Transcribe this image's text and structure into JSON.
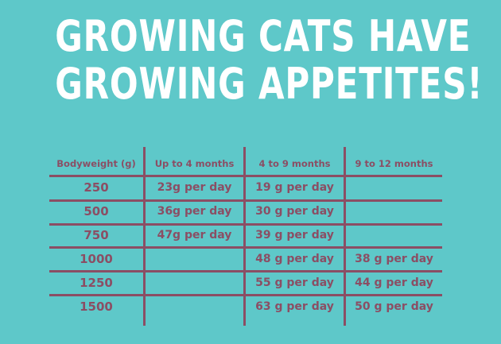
{
  "title": {
    "line1": "GROWING CATS HAVE",
    "line2": "GROWING APPETITES!"
  },
  "table": {
    "headers": [
      "Bodyweight (g)",
      "Up to 4 months",
      "4 to 9 months",
      "9 to 12 months"
    ],
    "rows": [
      {
        "bodyweight": "250",
        "up_to_4": "23g per day",
        "m4_to_9": "19 g per day",
        "m9_to_12": ""
      },
      {
        "bodyweight": "500",
        "up_to_4": "36g per day",
        "m4_to_9": "30 g per day",
        "m9_to_12": ""
      },
      {
        "bodyweight": "750",
        "up_to_4": "47g per day",
        "m4_to_9": "39 g per day",
        "m9_to_12": ""
      },
      {
        "bodyweight": "1000",
        "up_to_4": "",
        "m4_to_9": "48 g per day",
        "m9_to_12": "38 g per day"
      },
      {
        "bodyweight": "1250",
        "up_to_4": "",
        "m4_to_9": "55 g per day",
        "m9_to_12": "44 g per day"
      },
      {
        "bodyweight": "1500",
        "up_to_4": "",
        "m4_to_9": "63 g per day",
        "m9_to_12": "50 g per day"
      }
    ]
  },
  "colors": {
    "background": "#5ec8c9",
    "title_text": "#ffffff",
    "table_ink": "#8b4e64"
  }
}
